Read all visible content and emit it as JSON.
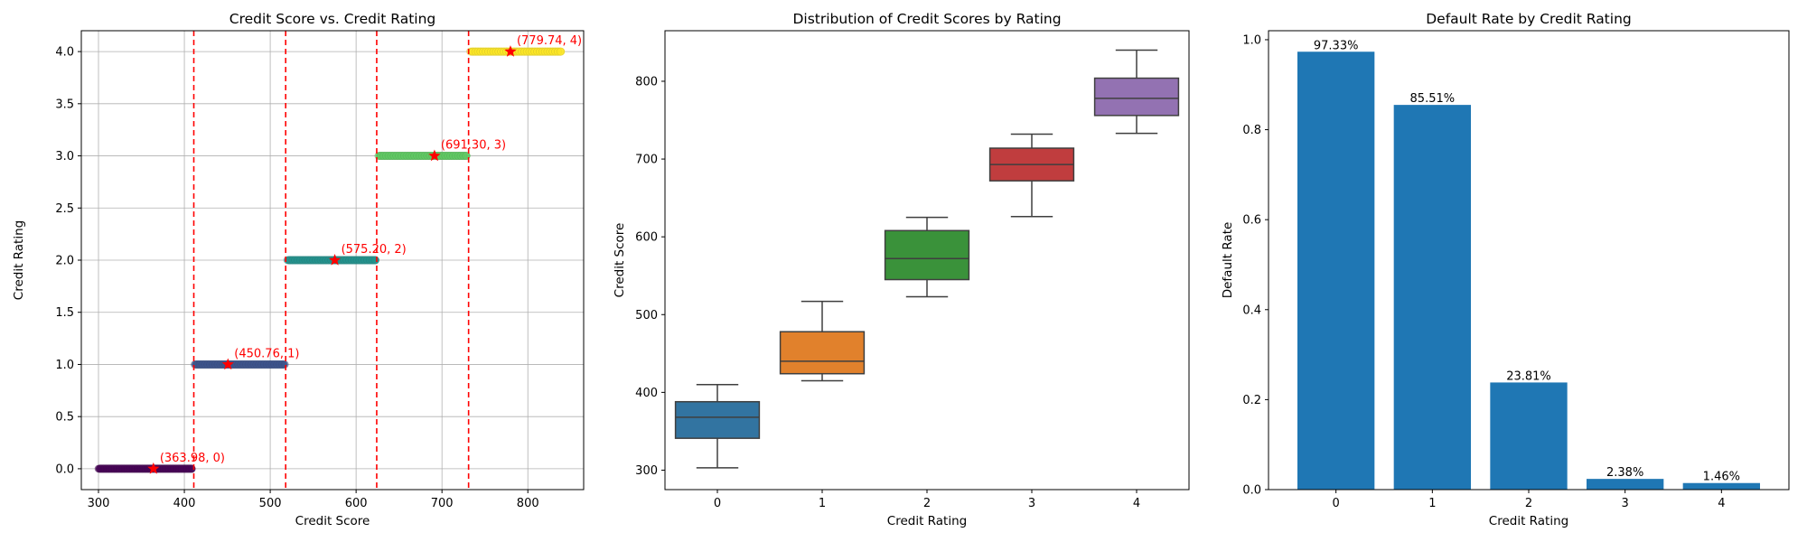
{
  "chart_data": [
    {
      "type": "scatter",
      "title": "Credit Score vs. Credit Rating",
      "xlabel": "Credit Score",
      "ylabel": "Credit Rating",
      "xlim": [
        280,
        865
      ],
      "ylim": [
        -0.2,
        4.2
      ],
      "xticks": [
        300,
        400,
        500,
        600,
        700,
        800
      ],
      "yticks": [
        0.0,
        0.5,
        1.0,
        1.5,
        2.0,
        2.5,
        3.0,
        3.5,
        4.0
      ],
      "grid": true,
      "series": [
        {
          "rating": 0,
          "x_range": [
            300,
            410
          ],
          "color": "#440154"
        },
        {
          "rating": 1,
          "x_range": [
            412,
            517
          ],
          "color": "#3b528b"
        },
        {
          "rating": 2,
          "x_range": [
            520,
            624
          ],
          "color": "#21918c"
        },
        {
          "rating": 3,
          "x_range": [
            626,
            730
          ],
          "color": "#5ec962"
        },
        {
          "rating": 4,
          "x_range": [
            733,
            840
          ],
          "color": "#fde725"
        }
      ],
      "thresholds": [
        411,
        518,
        624,
        731
      ],
      "threshold_color": "#ff0000",
      "means": [
        {
          "x": 363.98,
          "y": 0,
          "label": "(363.98, 0)"
        },
        {
          "x": 450.76,
          "y": 1,
          "label": "(450.76, 1)"
        },
        {
          "x": 575.2,
          "y": 2,
          "label": "(575.20, 2)"
        },
        {
          "x": 691.3,
          "y": 3,
          "label": "(691.30, 3)"
        },
        {
          "x": 779.74,
          "y": 4,
          "label": "(779.74, 4)"
        }
      ],
      "marker_color": "#ff0000"
    },
    {
      "type": "box",
      "title": "Distribution of Credit Scores by Rating",
      "xlabel": "Credit Rating",
      "ylabel": "Credit Score",
      "categories": [
        "0",
        "1",
        "2",
        "3",
        "4"
      ],
      "ylim": [
        275,
        865
      ],
      "yticks": [
        300,
        400,
        500,
        600,
        700,
        800
      ],
      "boxes": [
        {
          "min": 303,
          "q1": 341,
          "median": 368,
          "q3": 388,
          "max": 410,
          "color": "#3274a1"
        },
        {
          "min": 415,
          "q1": 424,
          "median": 440,
          "q3": 478,
          "max": 517,
          "color": "#e1812c"
        },
        {
          "min": 523,
          "q1": 545,
          "median": 572,
          "q3": 608,
          "max": 625,
          "color": "#3a923a"
        },
        {
          "min": 626,
          "q1": 672,
          "median": 693,
          "q3": 714,
          "max": 732,
          "color": "#c03d3e"
        },
        {
          "min": 733,
          "q1": 756,
          "median": 778,
          "q3": 804,
          "max": 840,
          "color": "#9372b2"
        }
      ]
    },
    {
      "type": "bar",
      "title": "Default Rate by Credit Rating",
      "xlabel": "Credit Rating",
      "ylabel": "Default Rate",
      "categories": [
        "0",
        "1",
        "2",
        "3",
        "4"
      ],
      "values": [
        0.9733,
        0.8551,
        0.2381,
        0.0238,
        0.0146
      ],
      "labels": [
        "97.33%",
        "85.51%",
        "23.81%",
        "2.38%",
        "1.46%"
      ],
      "ylim": [
        0,
        1.02
      ],
      "yticks": [
        0.0,
        0.2,
        0.4,
        0.6,
        0.8,
        1.0
      ],
      "color": "#1f77b4"
    }
  ]
}
